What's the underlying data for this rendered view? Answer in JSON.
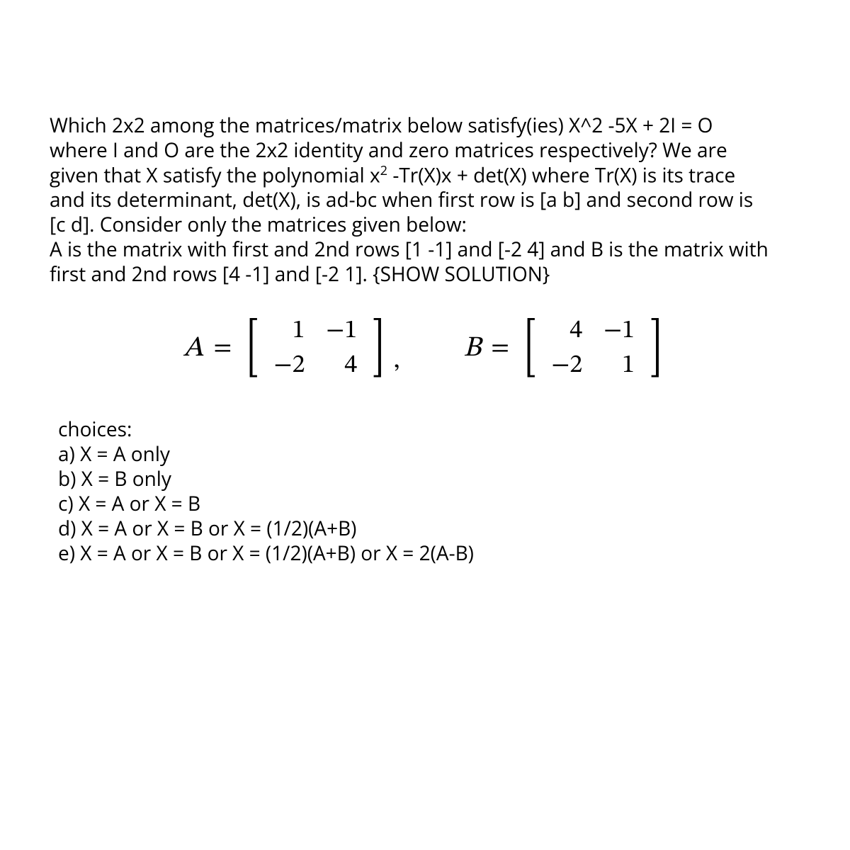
{
  "question": {
    "line1": "Which 2x2 among the matrices/matrix below satisfy(ies) X^2 -5X + 2I = O",
    "line2": "where I and O are the 2x2 identity and zero matrices respectively? We are",
    "line3_prefix": "given that X satisfy the polynomial x",
    "line3_sup": "2",
    "line3_suffix": " -Tr(X)x + det(X) where Tr(X) is its trace",
    "line4": "and its determinant, det(X), is ad-bc when first row is [a b] and second row is",
    "line5": "[c d]. Consider only the matrices given below:",
    "line6": "A is the matrix with first and 2nd rows [1 -1] and [-2 4] and B is the matrix with",
    "line7": "first and 2nd rows [4 -1] and [-2 1]. {SHOW SOLUTION}"
  },
  "matrixA": {
    "label": "A",
    "a11": "1",
    "a12": "−1",
    "a21": "−2",
    "a22": "4"
  },
  "matrixB": {
    "label": "B",
    "a11": "4",
    "a12": "−1",
    "a21": "−2",
    "a22": "1"
  },
  "choices": {
    "header": "choices:",
    "a": "a) X = A only",
    "b": "b) X = B only",
    "c": "c) X = A or X = B",
    "d": "d) X = A or X = B or X = (1/2)(A+B)",
    "e": "e) X = A or X = B or X = (1/2)(A+B) or X = 2(A-B)"
  }
}
